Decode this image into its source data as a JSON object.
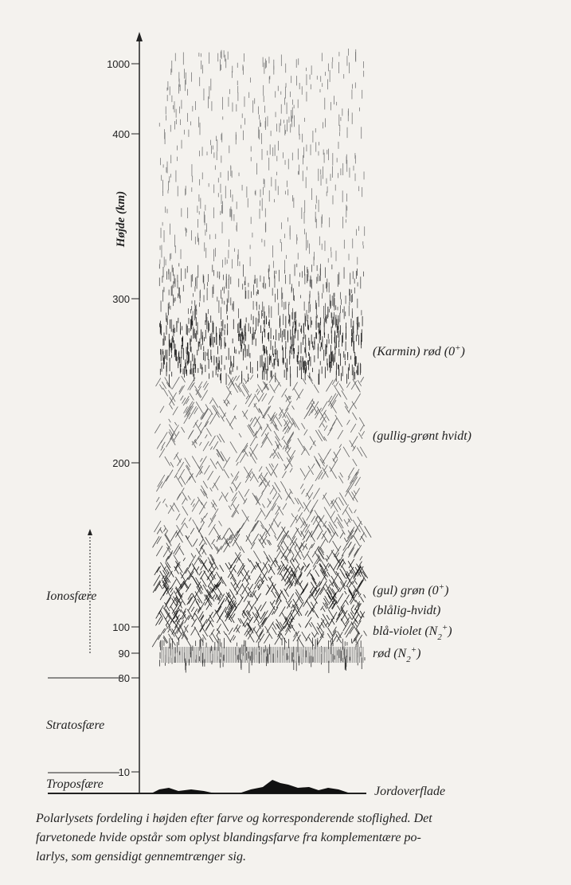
{
  "axis_label": "Højde (km)",
  "ticks": [
    1000,
    400,
    300,
    200,
    100,
    90,
    80,
    10
  ],
  "layers": [
    "Ionosfære",
    "Stratosfære",
    "Troposfære"
  ],
  "aurora_labels": [
    [
      {
        "t": "(Karmin) rød (0"
      },
      {
        "sup": "+"
      },
      {
        "t": ")"
      }
    ],
    [
      {
        "t": "(gullig-grønt hvidt)"
      }
    ],
    [
      {
        "t": "(gul) grøn (0"
      },
      {
        "sup": "+"
      },
      {
        "t": ")"
      }
    ],
    [
      {
        "t": "(blålig-hvidt)"
      }
    ],
    [
      {
        "t": "blå-violet (N"
      },
      {
        "sub": "2"
      },
      {
        "sup": "+"
      },
      {
        "t": ")"
      }
    ],
    [
      {
        "t": "rød (N"
      },
      {
        "sub": "2"
      },
      {
        "sup": "+"
      },
      {
        "t": ")"
      }
    ]
  ],
  "ground_label": "Jordoverflade",
  "caption": [
    "Polarlysets fordeling i højden efter farve og korresponderende stoflighed. Det",
    "farvetonede hvide opstår som oplyst blandingsfarve fra komplementære po-",
    "larlys, som gensidigt gennemtrænger sig."
  ]
}
